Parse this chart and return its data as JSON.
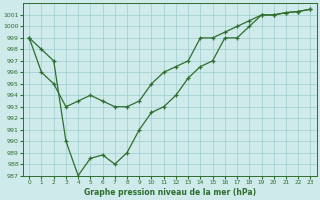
{
  "line1_x": [
    0,
    1,
    2,
    3,
    4,
    5,
    6,
    7,
    8,
    9,
    10,
    11,
    12,
    13,
    14,
    15,
    16,
    17,
    18,
    19,
    20,
    21,
    22,
    23
  ],
  "line1_y": [
    999,
    996,
    995,
    993,
    993.5,
    994,
    993.5,
    993,
    993,
    993.5,
    995,
    996,
    996.5,
    997,
    999,
    999,
    999.5,
    1000,
    1000.5,
    1001,
    1001,
    1001.2,
    1001.3,
    1001.5
  ],
  "line2_x": [
    0,
    1,
    2,
    3,
    4,
    5,
    6,
    7,
    8,
    9,
    10,
    11,
    12,
    13,
    14,
    15,
    16,
    17,
    18,
    19,
    20,
    21,
    22,
    23
  ],
  "line2_y": [
    999,
    998,
    997,
    990,
    987,
    988.5,
    988.8,
    988,
    989,
    991,
    992.5,
    993,
    994,
    995.5,
    996.5,
    997,
    999,
    999,
    1000,
    1001,
    1001,
    1001.2,
    1001.3,
    1001.5
  ],
  "line_color": "#2d6e2d",
  "bg_color": "#ceeaea",
  "grid_color": "#9ecece",
  "xlabel": "Graphe pression niveau de la mer (hPa)",
  "ylim": [
    987,
    1002
  ],
  "xlim": [
    -0.5,
    23.5
  ],
  "yticks": [
    987,
    988,
    989,
    990,
    991,
    992,
    993,
    994,
    995,
    996,
    997,
    998,
    999,
    1000,
    1001
  ],
  "xticks": [
    0,
    1,
    2,
    3,
    4,
    5,
    6,
    7,
    8,
    9,
    10,
    11,
    12,
    13,
    14,
    15,
    16,
    17,
    18,
    19,
    20,
    21,
    22,
    23
  ]
}
